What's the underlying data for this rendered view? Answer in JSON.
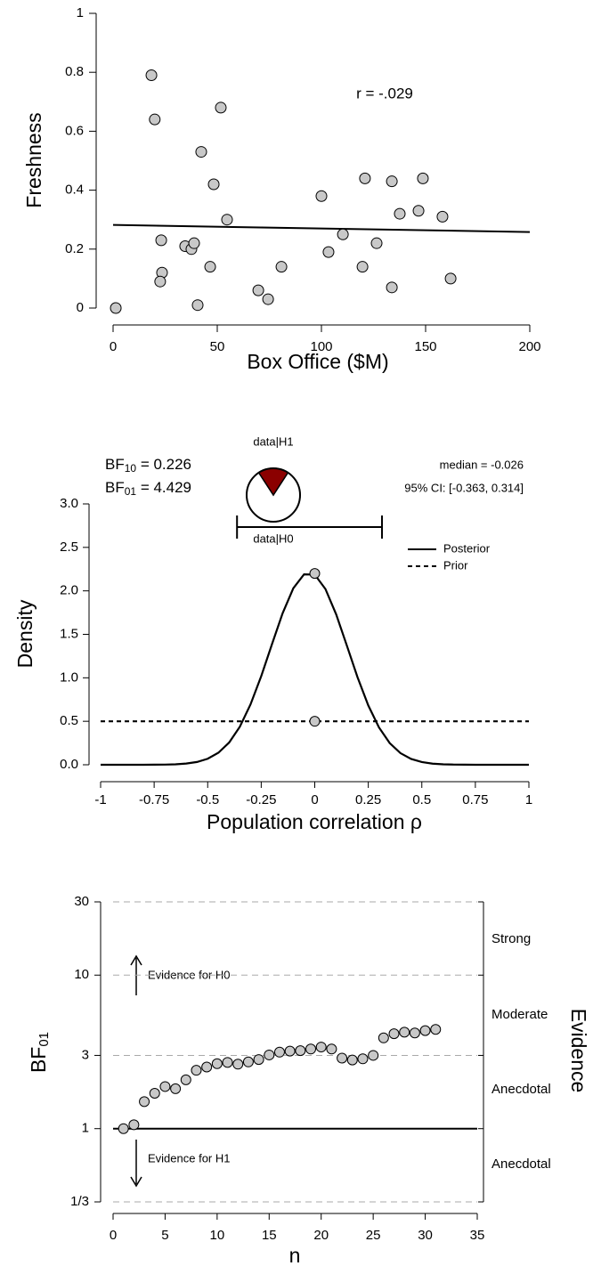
{
  "chart_data": [
    {
      "type": "scatter",
      "x": [
        1.3,
        18.4,
        20,
        51.7,
        42.3,
        48.3,
        54.7,
        23.1,
        34.6,
        37.6,
        38.9,
        23.5,
        22.6,
        46.6,
        40.6,
        69.7,
        74.4,
        80.8,
        100,
        103.4,
        110.3,
        120.9,
        133.8,
        119.7,
        126.5,
        133.8,
        137.6,
        146.6,
        148.7,
        158.1,
        162
      ],
      "values": [
        0,
        0.79,
        0.64,
        0.68,
        0.53,
        0.42,
        0.3,
        0.23,
        0.21,
        0.2,
        0.22,
        0.12,
        0.09,
        0.14,
        0.01,
        0.06,
        0.03,
        0.14,
        0.38,
        0.19,
        0.25,
        0.44,
        0.43,
        0.14,
        0.22,
        0.07,
        0.32,
        0.33,
        0.44,
        0.31,
        0.1
      ],
      "color": "#c8c8c8",
      "fit": {
        "x": [
          0,
          200
        ],
        "values": [
          0.282,
          0.258
        ]
      },
      "annotation": "r = -.029",
      "xlabel": "Box Office ($M)",
      "ylabel": "Freshness",
      "xlim": [
        0,
        200
      ],
      "xticks": [
        0,
        50,
        100,
        150,
        200
      ],
      "ylim": [
        0,
        1
      ],
      "yticks": [
        0,
        0.2,
        0.4,
        0.6,
        0.8,
        1
      ]
    },
    {
      "type": "density",
      "series": [
        {
          "name": "Posterior",
          "dash": false,
          "x": [
            -1,
            -0.95,
            -0.9,
            -0.85,
            -0.8,
            -0.75,
            -0.7,
            -0.65,
            -0.6,
            -0.55,
            -0.5,
            -0.45,
            -0.4,
            -0.35,
            -0.3,
            -0.25,
            -0.2,
            -0.15,
            -0.1,
            -0.05,
            0,
            0.05,
            0.1,
            0.15,
            0.2,
            0.25,
            0.3,
            0.35,
            0.4,
            0.45,
            0.5,
            0.55,
            0.6,
            0.65,
            0.7,
            0.75,
            0.8,
            0.85,
            0.9,
            0.95,
            1
          ],
          "values": [
            0,
            0,
            0,
            0,
            0,
            0.001,
            0.002,
            0.005,
            0.014,
            0.032,
            0.069,
            0.138,
            0.255,
            0.437,
            0.694,
            1.019,
            1.385,
            1.743,
            2.031,
            2.19,
            2.187,
            2.021,
            1.73,
            1.37,
            1.005,
            0.682,
            0.429,
            0.249,
            0.134,
            0.067,
            0.031,
            0.013,
            0.005,
            0.002,
            0.001,
            0,
            0,
            0,
            0,
            0,
            0
          ]
        },
        {
          "name": "Prior",
          "dash": true,
          "x": [
            -1,
            1
          ],
          "values": [
            0.5,
            0.5
          ]
        }
      ],
      "points": {
        "x": [
          0,
          0
        ],
        "values": [
          2.2,
          0.5
        ]
      },
      "point_color": "#c8c8c8",
      "ci": {
        "lower": -0.363,
        "upper": 0.314
      },
      "bf10": {
        "base": "BF",
        "sub": "10",
        "text": " = 0.226"
      },
      "bf01": {
        "base": "BF",
        "sub": "01",
        "text": " = 4.429"
      },
      "median_text": "median = -0.026",
      "ci_text": "95% CI: [-0.363, 0.314]",
      "pie": {
        "labels": [
          "data|H1",
          "data|H0"
        ],
        "values": [
          0.184,
          0.816
        ],
        "colors": [
          "#8b0000",
          "#ffffff"
        ]
      },
      "xlabel": "Population correlation ρ",
      "ylabel": "Density",
      "xlim": [
        -1,
        1
      ],
      "xticks": [
        -1,
        -0.75,
        -0.5,
        -0.25,
        0,
        0.25,
        0.5,
        0.75,
        1
      ],
      "ylim": [
        0,
        3
      ],
      "yticks": [
        {
          "value": 0,
          "label": "0.0"
        },
        {
          "value": 0.5,
          "label": "0.5"
        },
        {
          "value": 1,
          "label": "1.0"
        },
        {
          "value": 1.5,
          "label": "1.5"
        },
        {
          "value": 2,
          "label": "2.0"
        },
        {
          "value": 2.5,
          "label": "2.5"
        },
        {
          "value": 3,
          "label": "3.0"
        }
      ]
    },
    {
      "type": "sequential",
      "x": [
        1,
        2,
        3,
        4,
        5,
        6,
        7,
        8,
        9,
        10,
        11,
        12,
        13,
        14,
        15,
        16,
        17,
        18,
        19,
        20,
        21,
        22,
        23,
        24,
        25,
        26,
        27,
        28,
        29,
        30,
        31
      ],
      "values": [
        1,
        1.06,
        1.5,
        1.7,
        1.88,
        1.82,
        2.08,
        2.4,
        2.52,
        2.65,
        2.7,
        2.63,
        2.72,
        2.82,
        3.02,
        3.15,
        3.2,
        3.22,
        3.3,
        3.4,
        3.3,
        2.88,
        2.8,
        2.85,
        3,
        3.9,
        4.15,
        4.25,
        4.2,
        4.35,
        4.43
      ],
      "color": "#c8c8c8",
      "reference": 1,
      "log_scale": true,
      "xlabel": "n",
      "ylabel": {
        "base": "BF",
        "sub": "01"
      },
      "evidence_label": "Evidence",
      "evidence_levels": [
        "Strong",
        "Moderate",
        "Anecdotal",
        "Anecdotal"
      ],
      "h0_text": "Evidence for H0",
      "h1_text": "Evidence for H1",
      "xlim": [
        0,
        35
      ],
      "xticks": [
        0,
        5,
        10,
        15,
        20,
        25,
        30,
        35
      ],
      "ylim": [
        0.3333,
        30
      ],
      "yticks": [
        {
          "value": 0.3333,
          "label": "1/3"
        },
        1,
        3,
        10,
        30
      ]
    }
  ]
}
